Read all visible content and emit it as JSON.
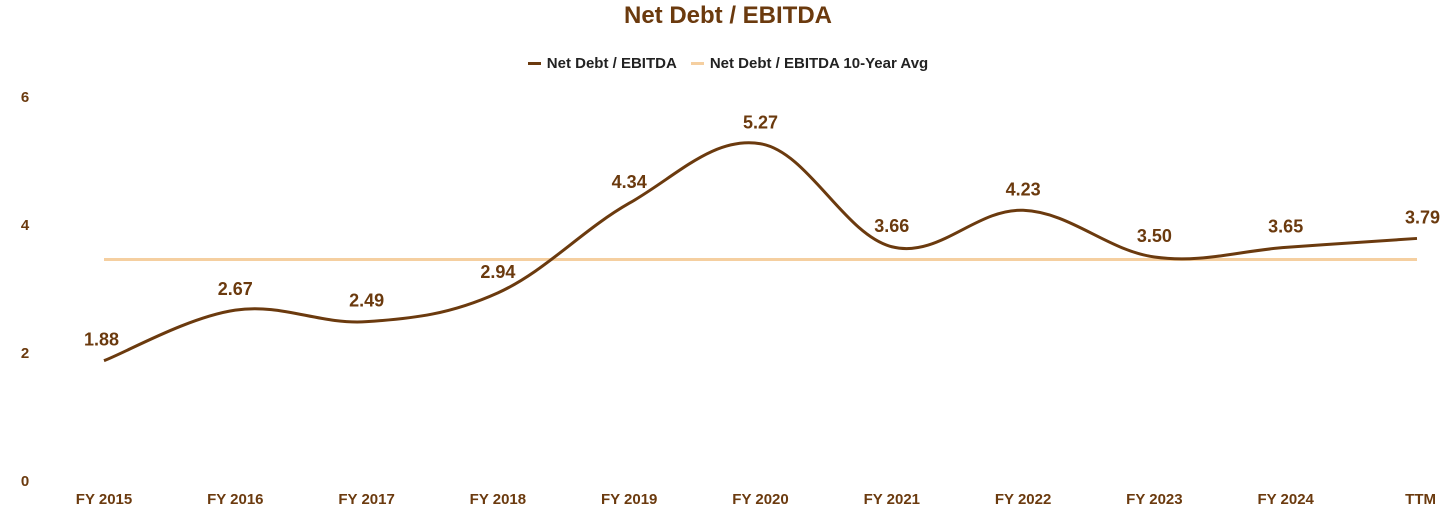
{
  "chart_data": {
    "type": "line",
    "title": "Net Debt / EBITDA",
    "categories": [
      "FY 2015",
      "FY 2016",
      "FY 2017",
      "FY 2018",
      "FY 2019",
      "FY 2020",
      "FY 2021",
      "FY 2022",
      "FY 2023",
      "FY 2024",
      "TTM"
    ],
    "series": [
      {
        "name": "Net Debt / EBITDA",
        "values": [
          1.88,
          2.67,
          2.49,
          2.94,
          4.34,
          5.27,
          3.66,
          4.23,
          3.5,
          3.65,
          3.79
        ],
        "labels": [
          "1.88",
          "2.67",
          "2.49",
          "2.94",
          "4.34",
          "5.27",
          "3.66",
          "4.23",
          "3.50",
          "3.65",
          "3.79"
        ],
        "color": "#6b3a0e"
      },
      {
        "name": "Net Debt / EBITDA 10-Year Avg",
        "value": 3.46,
        "color": "#f5cfa0"
      }
    ],
    "yticks": [
      "0",
      "2",
      "4",
      "6"
    ],
    "ylim": [
      0,
      6
    ],
    "grid": false,
    "legend_position": "top-center",
    "xlabel": "",
    "ylabel": ""
  }
}
